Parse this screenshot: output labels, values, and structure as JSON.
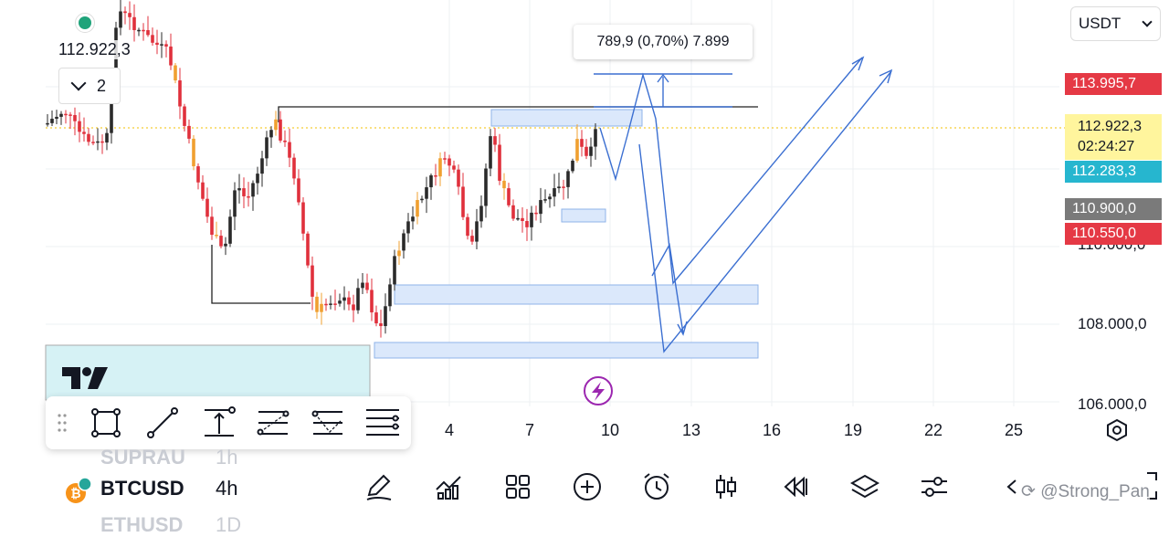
{
  "header": {
    "current_price": "112.922,3",
    "interval_count": "2",
    "currency_select": "USDT"
  },
  "measure_label": "789,9 (0,70%) 7.899",
  "price_tags": [
    {
      "value": "113.995,7",
      "color": "#e53945"
    },
    {
      "value": "112.922,3",
      "color": "#fff59d",
      "text_color": "#131722",
      "sub": "02:24:27"
    },
    {
      "value": "112.283,3",
      "color": "#26b6cf"
    },
    {
      "value": "110.900,0",
      "color": "#7a7a7a"
    },
    {
      "value": "110.550,0",
      "color": "#e53945"
    }
  ],
  "y_axis_labels": [
    "110.000,0",
    "108.000,0",
    "106.000,0"
  ],
  "x_axis_labels": [
    "4",
    "7",
    "10",
    "13",
    "16",
    "19",
    "22",
    "25"
  ],
  "toolbar": {
    "icons": [
      "rectangle-icon",
      "trend-line-icon",
      "measure-icon",
      "fib-retracement-icon",
      "fib-extension-icon",
      "horizontal-lines-icon"
    ]
  },
  "watchlist": {
    "above": {
      "symbol": "SUPRAU",
      "interval": "1h"
    },
    "current": {
      "symbol": "BTCUSD",
      "interval": "4h"
    },
    "below": {
      "symbol": "ETHUSD",
      "interval": "1D"
    }
  },
  "bottom_bar": {
    "icons": [
      "draw-pencil-icon",
      "indicators-icon",
      "layouts-icon",
      "add-icon",
      "alert-clock-icon",
      "candles-icon",
      "replay-icon",
      "layers-icon",
      "settings-sliders-icon",
      "back-icon"
    ]
  },
  "watermark": "@Strong_Pan",
  "colors": {
    "up": "#2a2a2a",
    "down": "#e0303c",
    "orange": "#f0a030",
    "accent_blue": "#3b6fd1",
    "zone_fill": "#dbe8fb"
  }
}
